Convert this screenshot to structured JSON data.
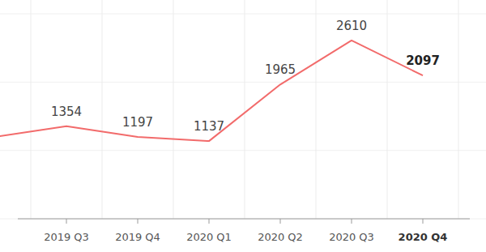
{
  "chart_data": {
    "type": "line",
    "categories": [
      null,
      "2019 Q3",
      "2019 Q4",
      "2020 Q1",
      "2020 Q2",
      "2020 Q3",
      "2020 Q4"
    ],
    "values": [
      1200,
      1354,
      1197,
      1137,
      1965,
      2610,
      2097
    ],
    "value_labels": [
      null,
      "1354",
      "1197",
      "1137",
      "1965",
      "2610",
      "2097"
    ],
    "color": "#f26b6b",
    "ylim": [
      0,
      3000
    ],
    "yticks": [
      0,
      1000,
      2000,
      3000
    ],
    "grid": true,
    "data_labels": true,
    "tick_labels": "x"
  }
}
